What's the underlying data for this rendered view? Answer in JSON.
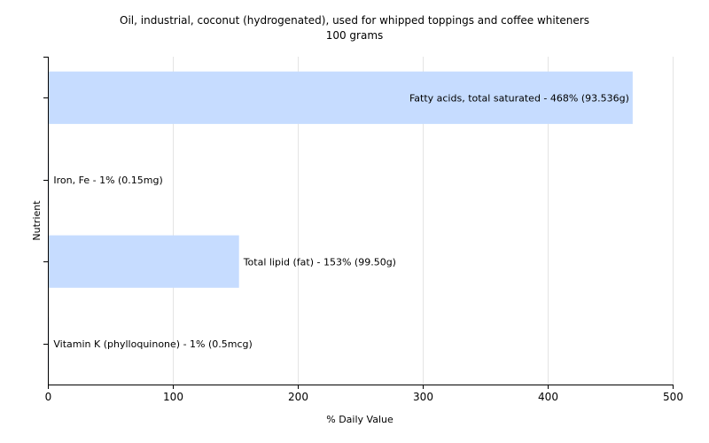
{
  "chart_data": {
    "type": "bar",
    "orientation": "horizontal",
    "title": "Oil, industrial, coconut (hydrogenated), used for whipped toppings and coffee whiteners",
    "subtitle": "100 grams",
    "xlabel": "% Daily Value",
    "ylabel": "Nutrient",
    "xlim": [
      0,
      500
    ],
    "xticks": [
      "0",
      "100",
      "200",
      "300",
      "400",
      "500"
    ],
    "grid": true,
    "categories": [
      "Fatty acids, total saturated",
      "Iron, Fe",
      "Total lipid (fat)",
      "Vitamin K (phylloquinone)"
    ],
    "values": [
      468,
      1,
      153,
      1
    ],
    "labels": [
      "Fatty acids, total saturated - 468% (93.536g)",
      "Iron, Fe - 1% (0.15mg)",
      "Total lipid (fat) - 153% (99.50g)",
      "Vitamin K (phylloquinone) - 1% (0.5mcg)"
    ],
    "bar_color": "#c6dcff",
    "grid_color": "#e4e4e4",
    "axis_color": "#000000"
  }
}
